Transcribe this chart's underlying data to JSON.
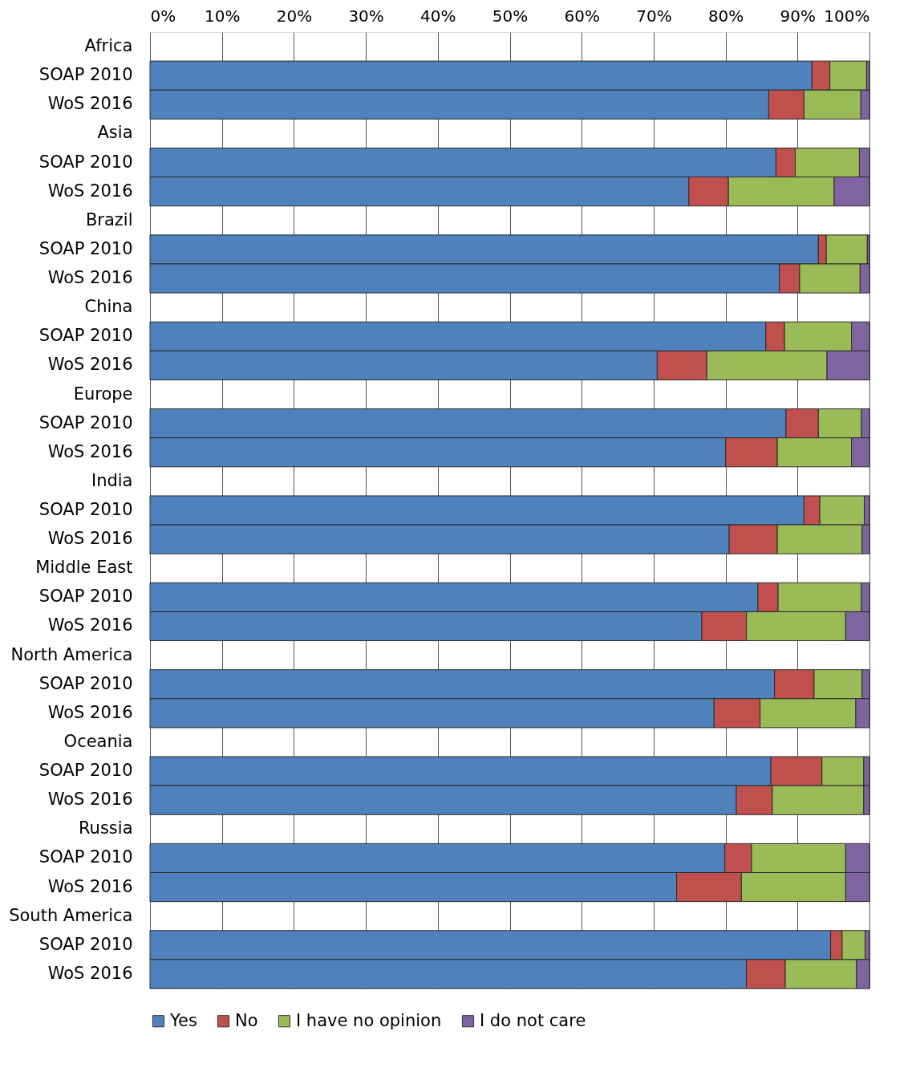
{
  "chart_data": {
    "type": "bar",
    "orientation": "horizontal",
    "stacked": true,
    "categories": [
      "Africa",
      "SOAP 2010",
      "WoS 2016",
      "Asia",
      "SOAP 2010",
      "WoS 2016",
      "Brazil",
      "SOAP 2010",
      "WoS 2016",
      "China",
      "SOAP 2010",
      "WoS 2016",
      "Europe",
      "SOAP 2010",
      "WoS 2016",
      "India",
      "SOAP 2010",
      "WoS 2016",
      "Middle East",
      "SOAP 2010",
      "WoS 2016",
      "North America",
      "SOAP 2010",
      "WoS 2016",
      "Oceania",
      "SOAP 2010",
      "WoS 2016",
      "Russia",
      "SOAP 2010",
      "WoS 2016",
      "South America",
      "SOAP 2010",
      "WoS 2016"
    ],
    "series": [
      {
        "name": "Yes",
        "color": "#4f81bd",
        "values": [
          null,
          92.0,
          86.0,
          null,
          87.0,
          74.9,
          null,
          92.9,
          87.5,
          null,
          85.6,
          70.5,
          null,
          88.4,
          80.0,
          null,
          90.9,
          80.5,
          null,
          84.5,
          76.7,
          null,
          86.8,
          78.4,
          null,
          86.3,
          81.5,
          null,
          79.9,
          73.2,
          null,
          94.6,
          82.9
        ]
      },
      {
        "name": "No",
        "color": "#c0504d",
        "values": [
          null,
          2.5,
          4.9,
          null,
          2.7,
          5.5,
          null,
          1.1,
          2.8,
          null,
          2.6,
          6.9,
          null,
          4.5,
          7.2,
          null,
          2.2,
          6.7,
          null,
          2.8,
          6.2,
          null,
          5.5,
          6.4,
          null,
          7.1,
          5.0,
          null,
          3.7,
          9.0,
          null,
          1.6,
          5.4
        ]
      },
      {
        "name": "I have no opinion",
        "color": "#9bbb59",
        "values": [
          null,
          5.1,
          7.9,
          null,
          8.9,
          14.7,
          null,
          5.7,
          8.4,
          null,
          9.3,
          16.7,
          null,
          6.0,
          10.3,
          null,
          6.2,
          11.8,
          null,
          11.6,
          13.8,
          null,
          6.7,
          13.3,
          null,
          5.8,
          12.7,
          null,
          13.1,
          14.5,
          null,
          3.2,
          9.9
        ]
      },
      {
        "name": "I do not care",
        "color": "#8064a2",
        "values": [
          null,
          0.4,
          1.2,
          null,
          1.4,
          4.9,
          null,
          0.3,
          1.3,
          null,
          2.5,
          5.9,
          null,
          1.1,
          2.5,
          null,
          0.7,
          1.0,
          null,
          1.1,
          3.3,
          null,
          1.0,
          1.9,
          null,
          0.8,
          0.8,
          null,
          3.3,
          3.3,
          null,
          0.6,
          1.8
        ]
      }
    ],
    "xlim": [
      0,
      100
    ],
    "xticks": [
      {
        "value": 0,
        "label": "0%"
      },
      {
        "value": 10,
        "label": "10%"
      },
      {
        "value": 20,
        "label": "20%"
      },
      {
        "value": 30,
        "label": "30%"
      },
      {
        "value": 40,
        "label": "40%"
      },
      {
        "value": 50,
        "label": "50%"
      },
      {
        "value": 60,
        "label": "60%"
      },
      {
        "value": 70,
        "label": "70%"
      },
      {
        "value": 80,
        "label": "80%"
      },
      {
        "value": 90,
        "label": "90%"
      },
      {
        "value": 100,
        "label": "100%"
      }
    ],
    "grid": "x",
    "legend": "bottom"
  }
}
